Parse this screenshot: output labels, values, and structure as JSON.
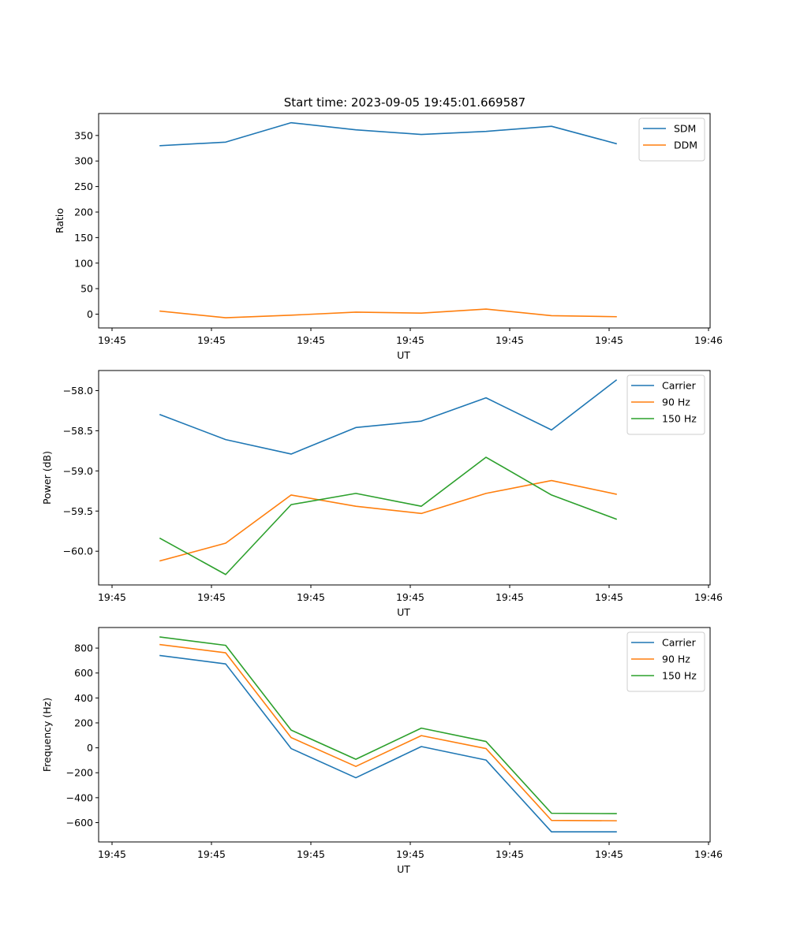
{
  "figure": {
    "title": "Start time: 2023-09-05 19:45:01.669587"
  },
  "chart_data": [
    {
      "type": "line",
      "title": "Start time: 2023-09-05 19:45:01.669587",
      "xlabel": "UT",
      "ylabel": "Ratio",
      "x_index": [
        1,
        2,
        3,
        4,
        5,
        6,
        7,
        8
      ],
      "xticks": [
        0,
        1.52,
        3.04,
        4.56,
        6.08,
        7.6,
        9.12
      ],
      "xtick_labels": [
        "19:45",
        "19:45",
        "19:45",
        "19:45",
        "19:45",
        "19:45",
        "19:46"
      ],
      "xlim": [
        -0.21,
        9.15
      ],
      "ylim": [
        -27,
        393
      ],
      "yticks": [
        0,
        50,
        100,
        150,
        200,
        250,
        300,
        350
      ],
      "ytick_labels": [
        "0",
        "50",
        "100",
        "150",
        "200",
        "250",
        "300",
        "350"
      ],
      "grid": false,
      "legend": "top-right",
      "series": [
        {
          "name": "SDM",
          "color": "#1f77b4",
          "values": [
            330,
            337,
            375,
            361,
            352,
            358,
            368,
            334
          ]
        },
        {
          "name": "DDM",
          "color": "#ff7f0e",
          "values": [
            6,
            -7,
            -2,
            4,
            2,
            10,
            -3,
            -5
          ]
        }
      ]
    },
    {
      "type": "line",
      "title": "",
      "xlabel": "UT",
      "ylabel": "Power (dB)",
      "x_index": [
        1,
        2,
        3,
        4,
        5,
        6,
        7,
        8
      ],
      "xticks": [
        0,
        1.52,
        3.04,
        4.56,
        6.08,
        7.6,
        9.12
      ],
      "xtick_labels": [
        "19:45",
        "19:45",
        "19:45",
        "19:45",
        "19:45",
        "19:45",
        "19:46"
      ],
      "xlim": [
        -0.21,
        9.15
      ],
      "ylim": [
        -60.42,
        -57.75
      ],
      "yticks": [
        -60.0,
        -59.5,
        -59.0,
        -58.5,
        -58.0
      ],
      "ytick_labels": [
        "−60.0",
        "−59.5",
        "−59.0",
        "−58.5",
        "−58.0"
      ],
      "grid": false,
      "legend": "top-right",
      "series": [
        {
          "name": "Carrier",
          "color": "#1f77b4",
          "values": [
            -58.3,
            -58.61,
            -58.79,
            -58.46,
            -58.38,
            -58.09,
            -58.49,
            -57.87
          ]
        },
        {
          "name": "90 Hz",
          "color": "#ff7f0e",
          "values": [
            -60.12,
            -59.9,
            -59.3,
            -59.44,
            -59.53,
            -59.28,
            -59.12,
            -59.29
          ]
        },
        {
          "name": "150 Hz",
          "color": "#2ca02c",
          "values": [
            -59.84,
            -60.29,
            -59.42,
            -59.28,
            -59.44,
            -58.83,
            -59.3,
            -59.6
          ]
        }
      ]
    },
    {
      "type": "line",
      "title": "",
      "xlabel": "UT",
      "ylabel": "Frequency (Hz)",
      "x_index": [
        1,
        2,
        3,
        4,
        5,
        6,
        7,
        8
      ],
      "xticks": [
        0,
        1.52,
        3.04,
        4.56,
        6.08,
        7.6,
        9.12
      ],
      "xtick_labels": [
        "19:45",
        "19:45",
        "19:45",
        "19:45",
        "19:45",
        "19:45",
        "19:46"
      ],
      "xlim": [
        -0.21,
        9.15
      ],
      "ylim": [
        -755,
        965
      ],
      "yticks": [
        -600,
        -400,
        -200,
        0,
        200,
        400,
        600,
        800
      ],
      "ytick_labels": [
        "−600",
        "−400",
        "−200",
        "0",
        "200",
        "400",
        "600",
        "800"
      ],
      "grid": false,
      "legend": "top-right",
      "series": [
        {
          "name": "Carrier",
          "color": "#1f77b4",
          "values": [
            740,
            673,
            -6,
            -240,
            10,
            -98,
            -674,
            -674
          ]
        },
        {
          "name": "90 Hz",
          "color": "#ff7f0e",
          "values": [
            828,
            762,
            82,
            -149,
            98,
            -6,
            -582,
            -585
          ]
        },
        {
          "name": "150 Hz",
          "color": "#2ca02c",
          "values": [
            889,
            822,
            142,
            -92,
            158,
            51,
            -525,
            -528
          ]
        }
      ]
    }
  ]
}
